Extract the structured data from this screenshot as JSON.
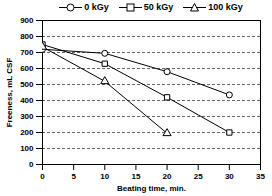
{
  "chart_data": {
    "type": "line",
    "x_label": "Beating time, min.",
    "y_label": "Freeness, mL CSF",
    "xlim": [
      0,
      35
    ],
    "xticks": [
      0,
      5,
      10,
      15,
      20,
      25,
      30,
      35
    ],
    "ylim": [
      0,
      900
    ],
    "yticks": [
      0,
      100,
      200,
      300,
      400,
      500,
      600,
      700,
      800,
      900
    ],
    "grid": true,
    "legend": "top",
    "series": [
      {
        "name": "0 kGy",
        "color": "#000000",
        "marker": "circle",
        "x": [
          0,
          10,
          20,
          30
        ],
        "values": [
          720,
          695,
          580,
          435
        ]
      },
      {
        "name": "50 kGy",
        "color": "#000000",
        "marker": "square",
        "x": [
          0,
          10,
          20,
          30
        ],
        "values": [
          750,
          630,
          420,
          200
        ]
      },
      {
        "name": "100 kGy",
        "color": "#000000",
        "marker": "triangle",
        "x": [
          0,
          10,
          20
        ],
        "values": [
          735,
          520,
          195
        ]
      }
    ]
  }
}
